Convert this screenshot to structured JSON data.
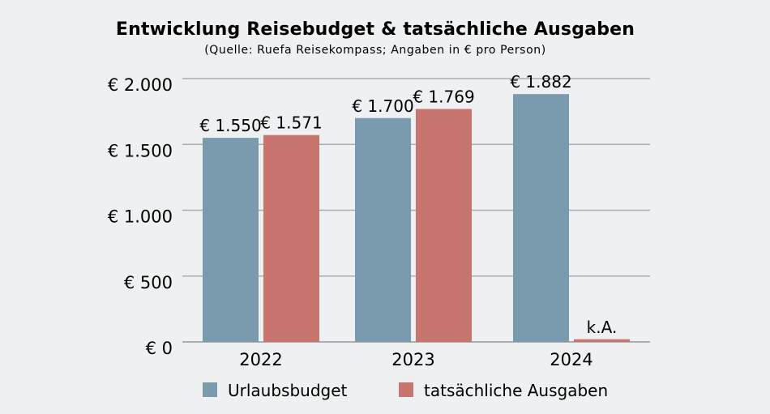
{
  "chart_data": {
    "type": "bar",
    "title": "Entwicklung Reisebudget & tatsächliche Ausgaben",
    "subtitle": "(Quelle: Ruefa Reisekompass; Angaben in € pro Person)",
    "categories": [
      "2022",
      "2023",
      "2024"
    ],
    "series": [
      {
        "name": "Urlaubsbudget",
        "color": "#7a9aae",
        "values": [
          1550,
          1700,
          1882
        ],
        "labels": [
          "€ 1.550",
          "€ 1.700",
          "€ 1.882"
        ]
      },
      {
        "name": "tatsächliche Ausgaben",
        "color": "#c87570",
        "values": [
          1571,
          1769,
          20
        ],
        "labels": [
          "€ 1.571",
          "€ 1.769",
          "k.A."
        ]
      }
    ],
    "ylim": [
      0,
      2000
    ],
    "yticks": [
      0,
      500,
      1000,
      1500,
      2000
    ],
    "ytick_labels": [
      "€ 0",
      "€ 500",
      "€ 1.000",
      "€ 1.500",
      "€ 2.000"
    ],
    "grid": true,
    "legend": "bottom"
  }
}
